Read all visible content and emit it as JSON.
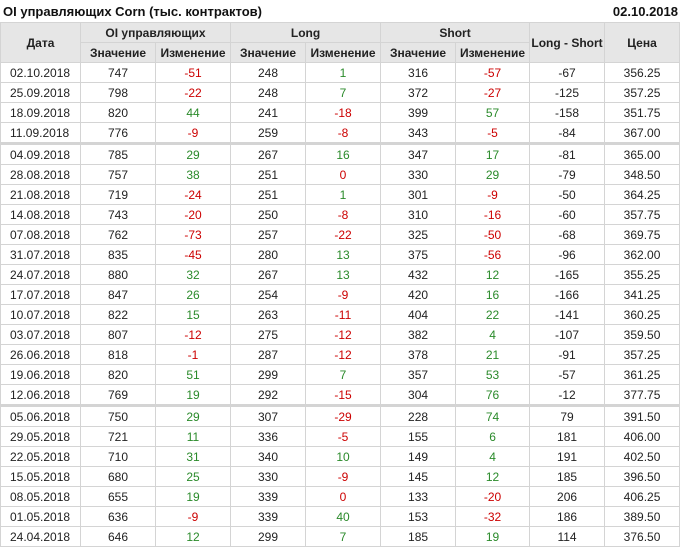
{
  "title": "OI управляющих Corn (тыс. контрактов)",
  "date": "02.10.2018",
  "colors": {
    "negative": "#cc0000",
    "positive": "#2a8a2a",
    "header_bg": "#e6e6e6"
  },
  "headers": {
    "date": "Дата",
    "oi": "OI управляющих",
    "long": "Long",
    "short": "Short",
    "long_short": "Long - Short",
    "price": "Цена",
    "value": "Значение",
    "change": "Изменение"
  },
  "group_breaks_after": [
    "11.09.2018",
    "12.06.2018"
  ],
  "rows": [
    [
      "02.10.2018",
      "747",
      "-51",
      "248",
      "1",
      "316",
      "-57",
      "-67",
      "356.25"
    ],
    [
      "25.09.2018",
      "798",
      "-22",
      "248",
      "7",
      "372",
      "-27",
      "-125",
      "357.25"
    ],
    [
      "18.09.2018",
      "820",
      "44",
      "241",
      "-18",
      "399",
      "57",
      "-158",
      "351.75"
    ],
    [
      "11.09.2018",
      "776",
      "-9",
      "259",
      "-8",
      "343",
      "-5",
      "-84",
      "367.00"
    ],
    [
      "04.09.2018",
      "785",
      "29",
      "267",
      "16",
      "347",
      "17",
      "-81",
      "365.00"
    ],
    [
      "28.08.2018",
      "757",
      "38",
      "251",
      "0",
      "330",
      "29",
      "-79",
      "348.50"
    ],
    [
      "21.08.2018",
      "719",
      "-24",
      "251",
      "1",
      "301",
      "-9",
      "-50",
      "364.25"
    ],
    [
      "14.08.2018",
      "743",
      "-20",
      "250",
      "-8",
      "310",
      "-16",
      "-60",
      "357.75"
    ],
    [
      "07.08.2018",
      "762",
      "-73",
      "257",
      "-22",
      "325",
      "-50",
      "-68",
      "369.75"
    ],
    [
      "31.07.2018",
      "835",
      "-45",
      "280",
      "13",
      "375",
      "-56",
      "-96",
      "362.00"
    ],
    [
      "24.07.2018",
      "880",
      "32",
      "267",
      "13",
      "432",
      "12",
      "-165",
      "355.25"
    ],
    [
      "17.07.2018",
      "847",
      "26",
      "254",
      "-9",
      "420",
      "16",
      "-166",
      "341.25"
    ],
    [
      "10.07.2018",
      "822",
      "15",
      "263",
      "-11",
      "404",
      "22",
      "-141",
      "360.25"
    ],
    [
      "03.07.2018",
      "807",
      "-12",
      "275",
      "-12",
      "382",
      "4",
      "-107",
      "359.50"
    ],
    [
      "26.06.2018",
      "818",
      "-1",
      "287",
      "-12",
      "378",
      "21",
      "-91",
      "357.25"
    ],
    [
      "19.06.2018",
      "820",
      "51",
      "299",
      "7",
      "357",
      "53",
      "-57",
      "361.25"
    ],
    [
      "12.06.2018",
      "769",
      "19",
      "292",
      "-15",
      "304",
      "76",
      "-12",
      "377.75"
    ],
    [
      "05.06.2018",
      "750",
      "29",
      "307",
      "-29",
      "228",
      "74",
      "79",
      "391.50"
    ],
    [
      "29.05.2018",
      "721",
      "11",
      "336",
      "-5",
      "155",
      "6",
      "181",
      "406.00"
    ],
    [
      "22.05.2018",
      "710",
      "31",
      "340",
      "10",
      "149",
      "4",
      "191",
      "402.50"
    ],
    [
      "15.05.2018",
      "680",
      "25",
      "330",
      "-9",
      "145",
      "12",
      "185",
      "396.50"
    ],
    [
      "08.05.2018",
      "655",
      "19",
      "339",
      "0",
      "133",
      "-20",
      "206",
      "406.25"
    ],
    [
      "01.05.2018",
      "636",
      "-9",
      "339",
      "40",
      "153",
      "-32",
      "186",
      "389.50"
    ],
    [
      "24.04.2018",
      "646",
      "12",
      "299",
      "7",
      "185",
      "19",
      "114",
      "376.50"
    ]
  ]
}
